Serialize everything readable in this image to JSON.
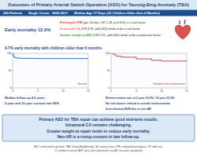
{
  "header": {
    "title": "Outcomes of Primary Arterial Switch Operation (ASO) for Taussig-Bing Anomaly (TBA)",
    "info": [
      "225 Patients",
      "Single Center",
      "2002-2017",
      "Median Age 77 Days (31 Children Older than 6 Months)"
    ]
  },
  "early": {
    "label": "Early mortality 12.0%",
    "factors": [
      {
        "highlight": "Prolonged CPB",
        "text": " (per 10 min, OR 1.18, p<0.001) is a risk factor",
        "color": "#e53935"
      },
      {
        "highlight": "Intramural CA",
        "text": " (OR 4.91, p=0.002) tends to be a risk factor",
        "color": "#e57373"
      },
      {
        "highlight": "Greater weight at ASO",
        "text": " (OR 0.51, p=0.062) tends to be a protective factor",
        "color": "#43a047"
      }
    ]
  },
  "older_note": "9.7% early mortality with children older than 6 months",
  "chart_data": [
    {
      "type": "line",
      "x": [
        0,
        0.1,
        0.3,
        0.5,
        1,
        2,
        5,
        10,
        15
      ],
      "series": [
        {
          "name": "Survival",
          "color": "#1f5fa8",
          "values": [
            100,
            93,
            89,
            87,
            86,
            85.5,
            85,
            85,
            85
          ]
        }
      ],
      "xlim": [
        0,
        15
      ],
      "ylim": [
        0,
        100
      ],
      "xticks": [
        0,
        5,
        10,
        15
      ],
      "yticks": [
        0,
        50,
        100
      ],
      "line_style": "step"
    },
    {
      "type": "line",
      "x": [
        0,
        0.5,
        1,
        2,
        5,
        8,
        10,
        15
      ],
      "series": [
        {
          "name": "Freedom from reintervention",
          "color": "#c0392b",
          "values": [
            100,
            96,
            92,
            89,
            84,
            80,
            77.7,
            77.7
          ]
        }
      ],
      "xlim": [
        0,
        15
      ],
      "ylim": [
        0,
        100
      ],
      "xticks": [
        0,
        5,
        10,
        15
      ],
      "yticks": [
        0,
        50,
        100
      ],
      "line_style": "step"
    }
  ],
  "left_notes": [
    "Median follow-up 4.5 years",
    "5-year and 10-year survival rate 85%"
  ],
  "right_notes": [
    "Reintervention rate at 5 year 16.0%, 10 year 22.3%",
    "No risk factors related to overall reintervention",
    "4 mechanical AVR due to neo-AR"
  ],
  "conclusion": [
    "Primary ASO for TBA repair can achieve good mid-term results.",
    "Intramural CA remains challenging.",
    "Greater weight at repair tends to reduce early mortality.",
    "Neo-AR is a rising concern in late follow-up."
  ],
  "footer": [
    "ASO: arterial switch operation, TBA: Taussig-Bing Anomaly, CA: coronary artery, CPB: cardiopulmonary bypass, OR: odds ratio,",
    "CI: confidence interval, AVR: aortic valve replacement, neo-AR: neo-aortic regurgitation"
  ]
}
